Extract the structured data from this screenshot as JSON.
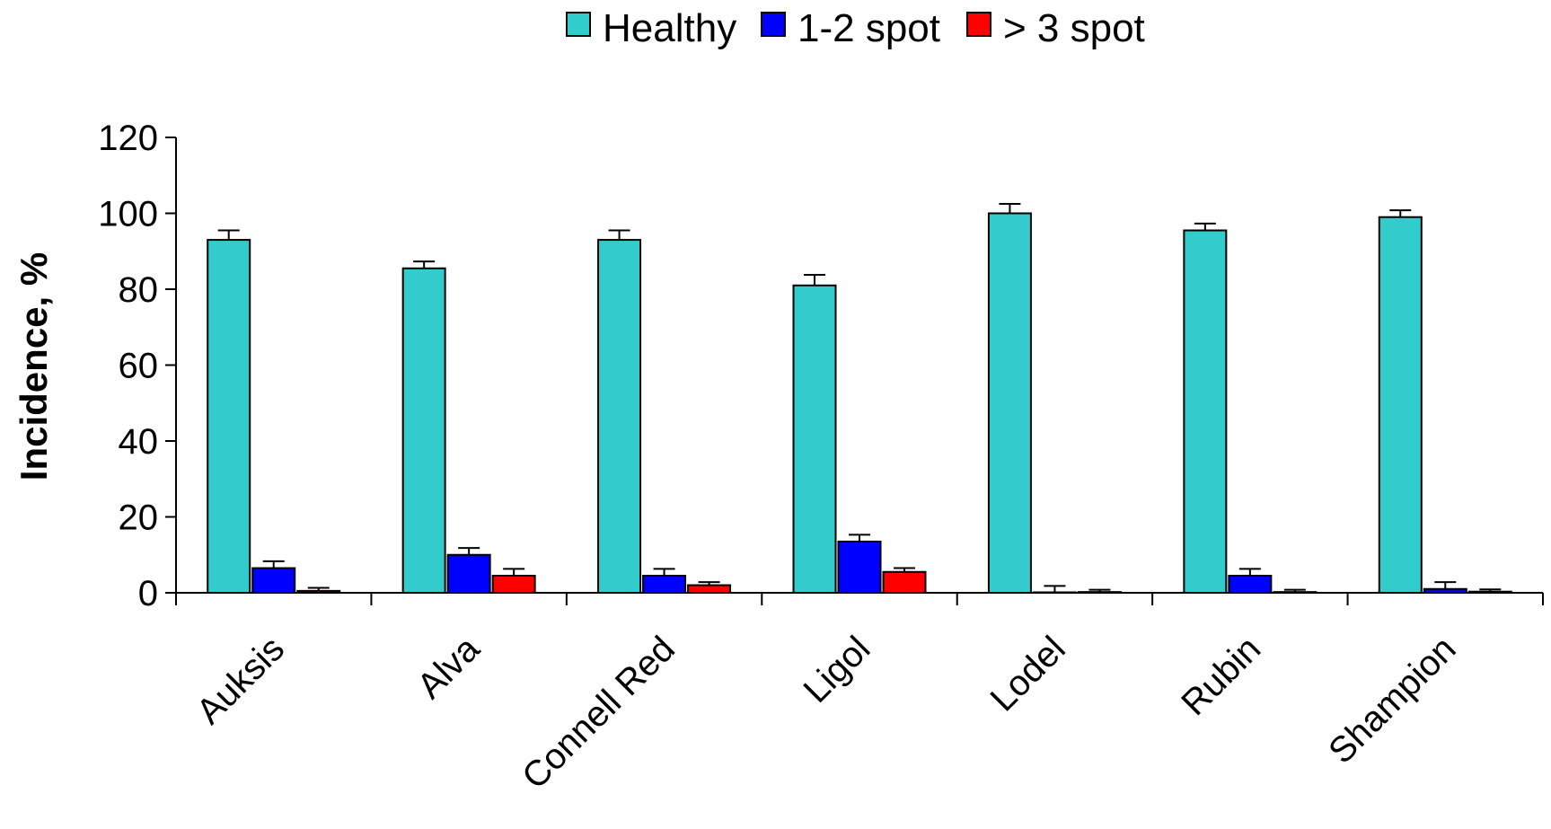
{
  "chart_data": {
    "type": "bar",
    "title": "",
    "xlabel": "",
    "ylabel": "Incidence, %",
    "ylim": [
      0,
      120
    ],
    "yticks": [
      0,
      20,
      40,
      60,
      80,
      100,
      120
    ],
    "legend_position": "top-center",
    "grid": false,
    "categories": [
      "Auksis",
      "Alva",
      "Connell Red",
      "Ligol",
      "Lodel",
      "Rubin",
      "Shampion"
    ],
    "series": [
      {
        "name": "Healthy",
        "color": "#33CCCC",
        "values": [
          93,
          85.5,
          93,
          81,
          100,
          95.5,
          99
        ],
        "errors": [
          2.5,
          1.8,
          2.5,
          2.8,
          2.5,
          1.8,
          1.8
        ]
      },
      {
        "name": "1-2 spot",
        "color": "#0000FF",
        "values": [
          6.5,
          10,
          4.5,
          13.5,
          0,
          4.5,
          1
        ],
        "errors": [
          1.8,
          1.8,
          1.8,
          1.8,
          1.8,
          1.8,
          1.8
        ]
      },
      {
        "name": "> 3 spot",
        "color": "#FF0000",
        "values": [
          0.5,
          4.5,
          2,
          5.5,
          0.2,
          0.2,
          0.3
        ],
        "errors": [
          0.8,
          1.8,
          0.8,
          1,
          0.6,
          0.6,
          0.6
        ]
      }
    ]
  }
}
